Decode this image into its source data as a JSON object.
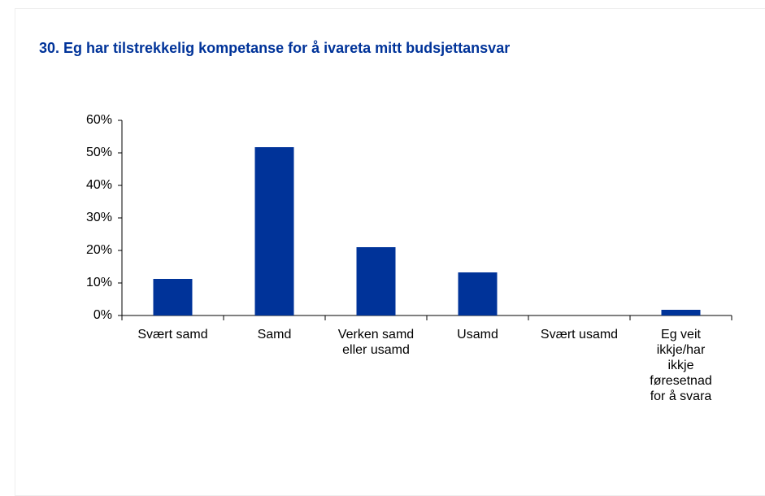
{
  "chart_data": {
    "type": "bar",
    "title": "30. Eg har tilstrekkelig kompetanse for å ivareta mitt budsjettansvar",
    "categories": [
      "Svært samd",
      "Samd",
      "Verken samd eller usamd",
      "Usamd",
      "Svært usamd",
      "Eg veit ikkje/har ikkje føresetnad for å svara"
    ],
    "values": [
      11.25,
      51.75,
      21,
      13.25,
      0,
      1.75
    ],
    "color": "#003399",
    "ylim": [
      0,
      60
    ],
    "yticks": [
      {
        "value": 0,
        "label": "0%"
      },
      {
        "value": 10,
        "label": "10%"
      },
      {
        "value": 20,
        "label": "20%"
      },
      {
        "value": 30,
        "label": "30%"
      },
      {
        "value": 40,
        "label": "40%"
      },
      {
        "value": 50,
        "label": "50%"
      },
      {
        "value": 60,
        "label": "60%"
      }
    ],
    "grid": false
  }
}
